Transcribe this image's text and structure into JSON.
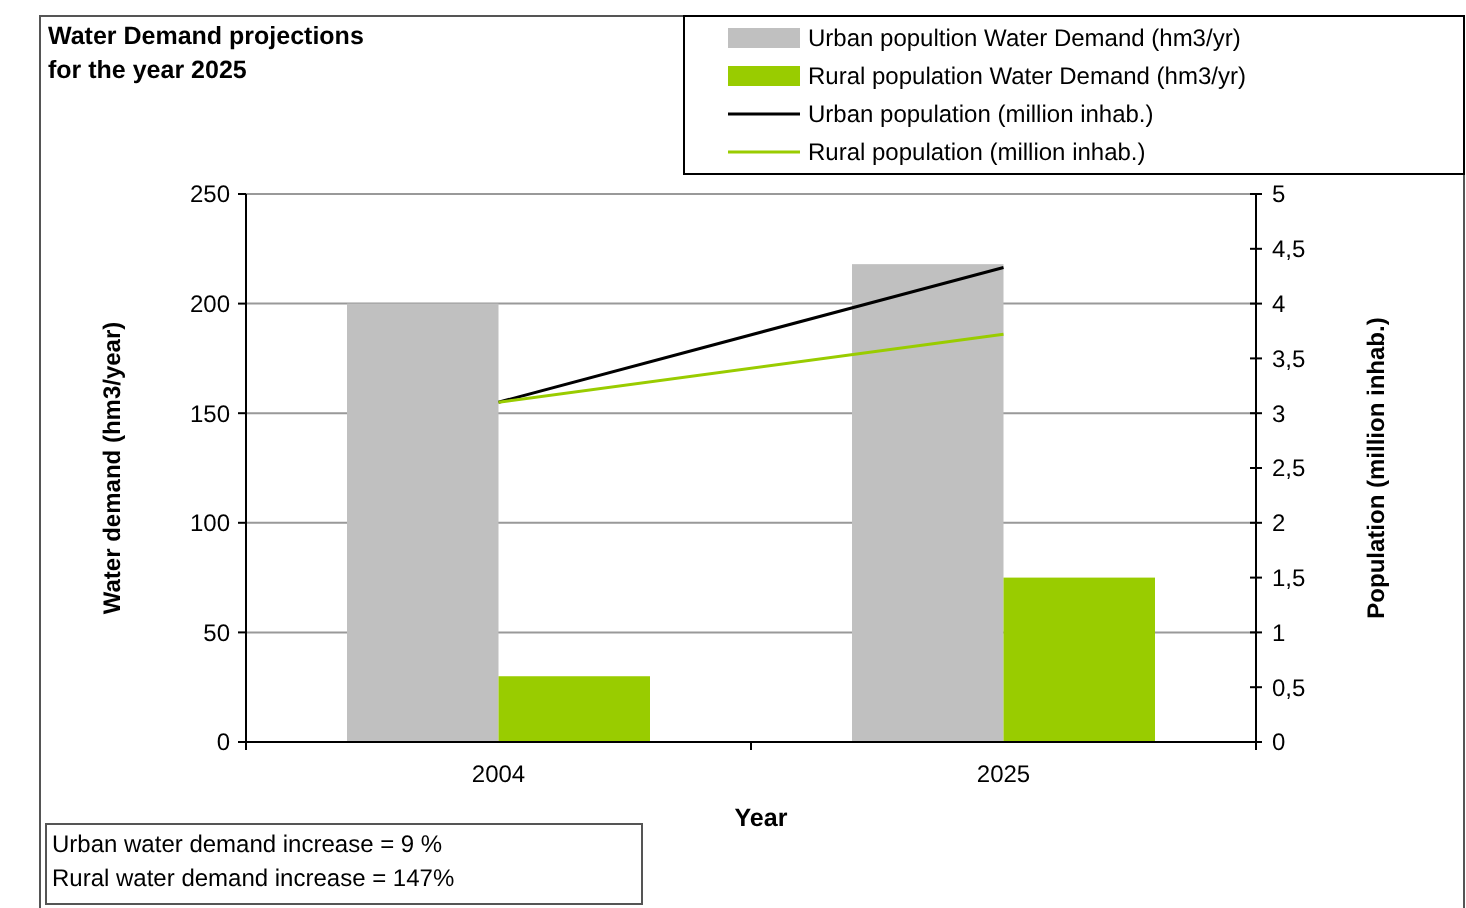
{
  "chart_data": {
    "type": "bar",
    "title": "Water Demand projections\nfor the year 2025",
    "xlabel": "Year",
    "ylabel": "Water demand (hm3/year)",
    "y2label": "Population (million inhab.)",
    "categories": [
      "2004",
      "2025"
    ],
    "series": [
      {
        "name": "Urban popultion Water Demand (hm3/yr)",
        "color": "#c0c0c0",
        "values": [
          200,
          218
        ]
      },
      {
        "name": "Rural population Water Demand (hm3/yr)",
        "color": "#99cc00",
        "values": [
          30,
          75
        ]
      },
      {
        "name": "Urban population (million inhab.)",
        "type": "line",
        "axis": "y2",
        "color": "#000000",
        "values": [
          3.1,
          4.33
        ]
      },
      {
        "name": "Rural population (million inhab.)",
        "type": "line",
        "axis": "y2",
        "color": "#99cc00",
        "values": [
          3.1,
          3.72
        ]
      }
    ],
    "ylim": [
      0,
      250
    ],
    "yticks": [
      0,
      50,
      100,
      150,
      200,
      250
    ],
    "y2lim": [
      0,
      5
    ],
    "y2ticks": [
      0,
      {
        "value": 0.5,
        "label": "0,5"
      },
      1,
      {
        "value": 1.5,
        "label": "1,5"
      },
      2,
      {
        "value": 2.5,
        "label": "2,5"
      },
      3,
      {
        "value": 3.5,
        "label": "3,5"
      },
      4,
      {
        "value": 4.5,
        "label": "4,5"
      },
      5
    ],
    "grid": "y",
    "legend": "top right",
    "annotations": [
      "Urban water demand increase = 9 %\nRural water demand increase = 147%"
    ]
  }
}
